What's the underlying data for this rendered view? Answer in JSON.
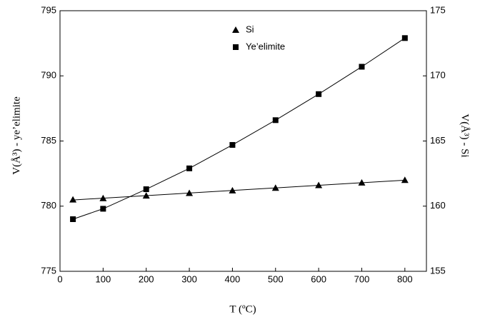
{
  "chart_data": {
    "type": "scatter",
    "x_label": "T (ºC)",
    "y_label": "V(Å³) - ye’elimite",
    "y2_label": "V(Å³) - Si",
    "x": [
      30,
      100,
      200,
      300,
      400,
      500,
      600,
      700,
      800
    ],
    "series": [
      {
        "name": "Si",
        "color": "#000000",
        "marker": "triangle",
        "axis": "y2",
        "fit": true,
        "values": [
          160.5,
          160.6,
          160.8,
          161.0,
          161.2,
          161.4,
          161.6,
          161.8,
          162.0
        ]
      },
      {
        "name": "Ye’elimite",
        "color": "#000000",
        "marker": "square",
        "fit": false,
        "values": [
          779.0,
          779.8,
          781.3,
          782.9,
          784.7,
          786.6,
          788.6,
          790.7,
          792.9
        ]
      }
    ],
    "xlim": [
      0,
      850
    ],
    "xticks": [
      0,
      100,
      200,
      300,
      400,
      500,
      600,
      700,
      800
    ],
    "ylim": [
      775,
      795
    ],
    "yticks": [
      775,
      780,
      785,
      790,
      795
    ],
    "y2lim": [
      155,
      175
    ],
    "y2ticks": [
      155,
      160,
      165,
      170,
      175
    ],
    "legend": "top-center"
  }
}
